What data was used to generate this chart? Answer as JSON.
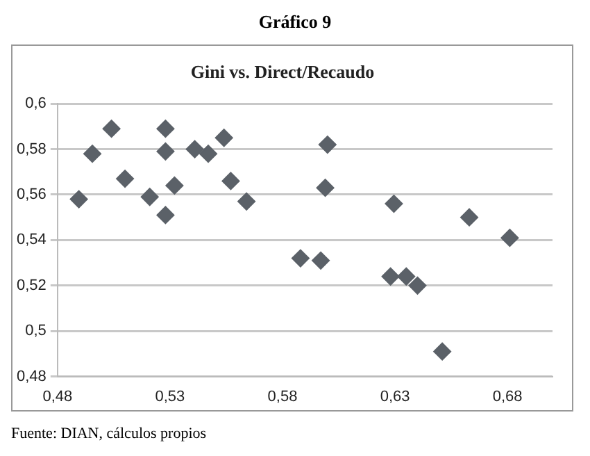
{
  "chart_data": {
    "type": "scatter",
    "title": "Gini vs. Direct/Recaudo",
    "subtitle": "Gráfico 9",
    "annotations": [
      "Fuente: DIAN, cálculos propios"
    ],
    "x": [
      0.4895,
      0.4955,
      0.504,
      0.51,
      0.521,
      0.528,
      0.528,
      0.528,
      0.532,
      0.541,
      0.547,
      0.554,
      0.557,
      0.564,
      0.588,
      0.597,
      0.599,
      0.6,
      0.6295,
      0.628,
      0.635,
      0.64,
      0.651,
      0.663,
      0.681
    ],
    "values": [
      0.558,
      0.578,
      0.589,
      0.567,
      0.559,
      0.589,
      0.579,
      0.551,
      0.564,
      0.58,
      0.578,
      0.585,
      0.566,
      0.557,
      0.532,
      0.531,
      0.563,
      0.582,
      0.556,
      0.524,
      0.524,
      0.52,
      0.491,
      0.55,
      0.541
    ],
    "color": "#5b6168",
    "marker": "diamond",
    "xlim": [
      0.48,
      0.7
    ],
    "xticks": [
      {
        "value": 0.48,
        "label": "0,48"
      },
      {
        "value": 0.53,
        "label": "0,53"
      },
      {
        "value": 0.58,
        "label": "0,58"
      },
      {
        "value": 0.63,
        "label": "0,63"
      },
      {
        "value": 0.68,
        "label": "0,68"
      }
    ],
    "ylim": [
      0.48,
      0.6
    ],
    "yticks": [
      {
        "value": 0.48,
        "label": "0,48"
      },
      {
        "value": 0.5,
        "label": "0,5"
      },
      {
        "value": 0.52,
        "label": "0,52"
      },
      {
        "value": 0.54,
        "label": "0,54"
      },
      {
        "value": 0.56,
        "label": "0,56"
      },
      {
        "value": 0.58,
        "label": "0,58"
      },
      {
        "value": 0.6,
        "label": "0,6"
      }
    ],
    "grid": "y"
  }
}
